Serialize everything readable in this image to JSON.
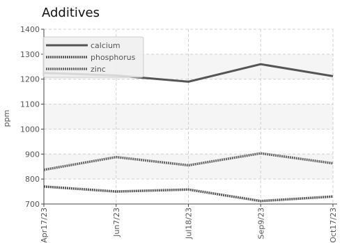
{
  "chart_data": {
    "type": "line",
    "title": "Additives",
    "ylabel": "ppm",
    "xlabel": "",
    "x": [
      "Apr17/23",
      "Jun7/23",
      "Jul18/23",
      "Sep9/23",
      "Oct17/23"
    ],
    "ylim": [
      700,
      1400
    ],
    "yticks": [
      700,
      800,
      900,
      1000,
      1100,
      1200,
      1300,
      1400
    ],
    "grid": true,
    "legend": "top-left",
    "series": [
      {
        "name": "calcium",
        "values": [
          1225,
          1215,
          1190,
          1260,
          1212
        ],
        "color": "#555555",
        "style": "solid"
      },
      {
        "name": "phosphorus",
        "values": [
          770,
          750,
          758,
          712,
          730
        ],
        "color": "#555555",
        "style": "dotted"
      },
      {
        "name": "zinc",
        "values": [
          837,
          888,
          855,
          903,
          863
        ],
        "color": "#666666",
        "style": "dotted"
      }
    ]
  }
}
